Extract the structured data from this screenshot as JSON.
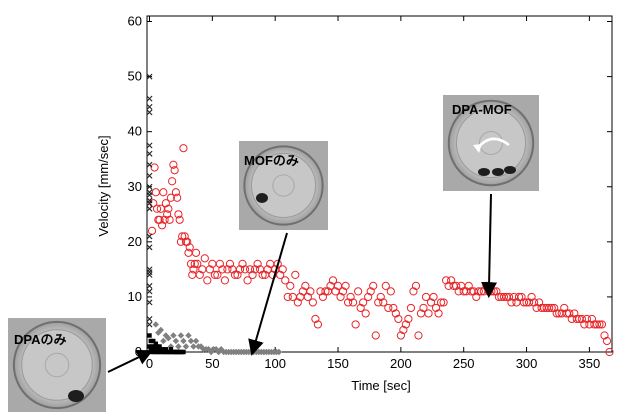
{
  "chart_data": {
    "type": "scatter",
    "xlabel": "Time [sec]",
    "ylabel": "Velocity [mm/sec]",
    "xlim": [
      -2,
      368
    ],
    "ylim": [
      0,
      61
    ],
    "xticks": [
      0,
      50,
      100,
      150,
      200,
      250,
      300,
      350
    ],
    "yticks": [
      0,
      10,
      20,
      30,
      40,
      50,
      60
    ],
    "grid": false,
    "series": [
      {
        "marker": "circle-open",
        "color": "#e8262a",
        "x": [
          2,
          3,
          4,
          5,
          6,
          7,
          8,
          9,
          10,
          11,
          12,
          13,
          14,
          15,
          16,
          17,
          18,
          19,
          20,
          21,
          22,
          23,
          24,
          25,
          26,
          27,
          28,
          29,
          30,
          31,
          32,
          33,
          34,
          35,
          36,
          37,
          38,
          40,
          42,
          44,
          46,
          48,
          50,
          52,
          54,
          56,
          58,
          60,
          62,
          64,
          66,
          68,
          70,
          72,
          74,
          76,
          78,
          80,
          82,
          84,
          86,
          88,
          90,
          92,
          94,
          96,
          98,
          100,
          102,
          104,
          106,
          108,
          110,
          112,
          114,
          116,
          118,
          120,
          122,
          124,
          126,
          128,
          130,
          132,
          134,
          136,
          138,
          140,
          142,
          144,
          146,
          148,
          150,
          152,
          154,
          156,
          158,
          160,
          162,
          164,
          166,
          168,
          170,
          172,
          174,
          176,
          178,
          180,
          182,
          184,
          186,
          188,
          190,
          192,
          194,
          196,
          198,
          200,
          202,
          204,
          206,
          208,
          210,
          212,
          214,
          216,
          218,
          220,
          222,
          224,
          226,
          228,
          230,
          232,
          234,
          236,
          238,
          240,
          242,
          244,
          246,
          248,
          250,
          252,
          254,
          256,
          258,
          260,
          262,
          264,
          266,
          268,
          270,
          272,
          274,
          276,
          278,
          280,
          282,
          284,
          286,
          288,
          290,
          292,
          294,
          296,
          298,
          300,
          302,
          304,
          306,
          308,
          310,
          312,
          314,
          316,
          318,
          320,
          322,
          324,
          326,
          328,
          330,
          332,
          334,
          336,
          338,
          340,
          342,
          344,
          346,
          348,
          350,
          352,
          354,
          356,
          358,
          360,
          362,
          364,
          366
        ],
        "y": [
          22,
          27,
          33.5,
          29,
          26,
          24,
          24,
          26,
          23,
          29,
          24,
          27,
          25,
          26,
          24,
          28,
          31,
          34,
          33,
          29,
          28,
          25,
          24,
          20,
          21,
          37,
          21,
          20,
          20,
          18,
          19,
          16,
          14,
          15,
          16,
          18,
          16,
          14,
          15,
          17,
          13,
          15,
          16,
          14,
          14,
          16,
          15,
          13,
          15,
          16,
          15,
          14,
          14,
          15,
          16,
          15,
          13,
          15,
          14,
          15,
          16,
          15,
          14,
          14,
          15,
          16,
          14,
          15,
          16,
          14,
          15,
          13,
          10,
          12,
          10,
          14,
          9,
          10,
          11,
          12,
          10,
          11,
          9,
          6,
          5,
          11,
          10,
          11,
          11,
          12,
          13,
          11,
          12,
          10,
          11,
          12,
          9,
          10,
          9,
          5,
          11,
          8,
          9,
          7,
          10,
          11,
          12,
          3,
          9,
          10,
          9,
          12,
          8,
          11,
          8,
          7,
          6,
          3,
          4,
          5,
          6,
          8,
          11,
          12,
          3,
          7,
          8,
          10,
          7,
          9,
          10,
          8,
          7,
          9,
          9,
          13,
          12,
          13,
          12,
          12,
          11,
          12,
          11,
          11,
          12,
          11,
          11,
          10,
          11,
          11,
          11,
          12,
          11,
          11,
          11,
          11,
          10,
          10,
          10,
          10,
          10,
          9,
          10,
          9,
          10,
          10,
          9,
          9,
          9,
          10,
          9,
          8,
          9,
          8,
          8,
          8,
          8,
          8,
          8,
          7,
          7,
          7,
          8,
          7,
          7,
          6,
          7,
          6,
          6,
          6,
          5,
          6,
          5,
          6,
          5,
          5,
          5,
          5,
          3,
          2,
          0
        ]
      },
      {
        "marker": "cross",
        "color": "#222222",
        "x": [
          0,
          0,
          0,
          0,
          0,
          0,
          0,
          0,
          0,
          0,
          0,
          0,
          0,
          0,
          0,
          0,
          0,
          0,
          0,
          0,
          0,
          0,
          0,
          0
        ],
        "y": [
          50,
          46,
          44.5,
          43.5,
          37.5,
          36,
          34,
          32,
          30,
          29,
          28.5,
          27.5,
          27,
          26,
          21,
          19,
          15,
          14.5,
          14,
          12,
          11,
          9,
          6,
          5
        ]
      },
      {
        "marker": "diamond-filled",
        "color": "#808080",
        "x": [
          5,
          7,
          9,
          11,
          13,
          15,
          17,
          19,
          21,
          23,
          25,
          27,
          29,
          31,
          33,
          35,
          37,
          39,
          41,
          43,
          45,
          47,
          49,
          51,
          53,
          55,
          57,
          59,
          61,
          63,
          65,
          67,
          69,
          71,
          73,
          75,
          77,
          79,
          81,
          83,
          85,
          87,
          89,
          91,
          93,
          95,
          97,
          99,
          101,
          103
        ],
        "y": [
          5,
          3.5,
          4,
          2,
          3,
          2.5,
          1,
          3,
          2,
          1,
          3,
          2,
          1,
          3,
          2,
          1,
          2,
          1,
          1,
          0.5,
          0.5,
          0.5,
          0,
          0.5,
          0.5,
          0,
          0.5,
          0,
          0,
          0,
          0,
          0,
          0,
          0,
          0,
          0,
          0,
          0,
          0,
          0,
          0,
          0,
          0,
          0,
          0,
          0,
          0,
          0,
          0,
          0
        ]
      },
      {
        "marker": "square-filled",
        "color": "#000000",
        "x": [
          0,
          0,
          1,
          1,
          2,
          2,
          3,
          3,
          4,
          4,
          5,
          5,
          6,
          6,
          7,
          7,
          8,
          9,
          10,
          11,
          12,
          13,
          14,
          15,
          16,
          17,
          18,
          19,
          20,
          21,
          22,
          23,
          24,
          25,
          26,
          27
        ],
        "y": [
          1,
          3,
          0.5,
          2,
          1,
          0,
          2,
          0.5,
          0,
          1,
          0.5,
          1.5,
          0,
          1,
          0.5,
          0,
          1,
          0,
          0.5,
          0,
          0,
          0.5,
          0,
          0,
          0,
          0.5,
          0,
          0,
          0,
          0,
          0,
          0,
          0,
          0,
          0,
          0
        ]
      }
    ],
    "annotations": [
      {
        "label": "DPAのみ",
        "arrow_to": [
          0,
          0
        ]
      },
      {
        "label": "MOFのみ",
        "arrow_to": [
          82,
          0
        ]
      },
      {
        "label": "DPA-MOF",
        "arrow_to": [
          270,
          10.5
        ]
      }
    ]
  }
}
